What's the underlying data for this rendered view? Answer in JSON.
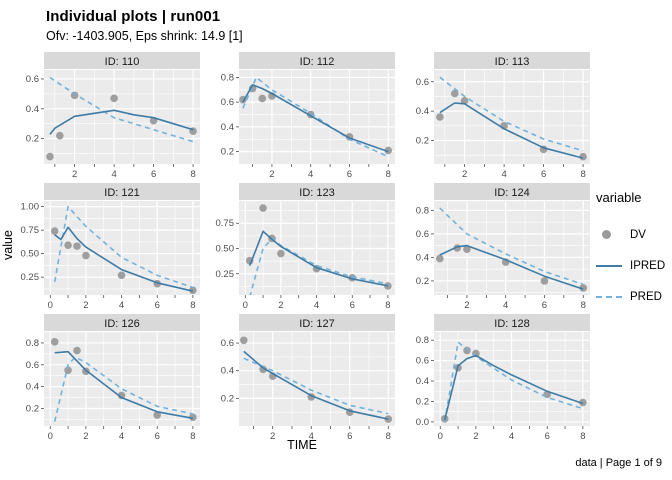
{
  "header": {
    "title": "Individual plots | run001",
    "subtitle": "Ofv: -1403.905, Eps shrink: 14.9 [1]"
  },
  "axis": {
    "x_label": "TIME",
    "y_label": "value"
  },
  "legend": {
    "title": "variable",
    "items": [
      {
        "label": "DV",
        "glyph": "point-glyph"
      },
      {
        "label": "IPRED",
        "glyph": "solid-line-glyph"
      },
      {
        "label": "PRED",
        "glyph": "dashed-line-glyph"
      }
    ]
  },
  "caption": "data | Page 1 of 9",
  "style": {
    "dv_color": "#9A9A9A",
    "ipred_color": "#3E7CA6",
    "pred_color": "#72B2DC",
    "panel_bg": "#EBEBEB",
    "strip_bg": "#D9D9D9",
    "grid_color": "#FFFFFF",
    "tick_label_color": "#4D4D4D"
  },
  "chart_data": [
    {
      "type": "line",
      "title": "ID: 110",
      "xlim": [
        0.45,
        8.35
      ],
      "ylim": [
        0.03,
        0.66
      ],
      "x_ticks": [
        2,
        4,
        6,
        8
      ],
      "y_ticks": [
        0.2,
        0.4,
        0.6
      ],
      "y_tick_labels": [
        "0.2",
        "0.4",
        "0.6"
      ],
      "series": [
        {
          "name": "DV",
          "kind": "point",
          "x": [
            0.75,
            1.25,
            2,
            4,
            6,
            8
          ],
          "y": [
            0.08,
            0.22,
            0.49,
            0.47,
            0.32,
            0.25
          ]
        },
        {
          "name": "IPRED",
          "kind": "solid",
          "x": [
            0.75,
            1,
            2,
            3,
            4,
            5,
            6,
            7,
            8
          ],
          "y": [
            0.23,
            0.27,
            0.35,
            0.37,
            0.39,
            0.36,
            0.34,
            0.3,
            0.26
          ]
        },
        {
          "name": "PRED",
          "kind": "dashed",
          "x": [
            0.75,
            2,
            4,
            6,
            8
          ],
          "y": [
            0.61,
            0.5,
            0.34,
            0.26,
            0.18
          ]
        }
      ]
    },
    {
      "type": "line",
      "title": "ID: 112",
      "xlim": [
        0.3,
        8.35
      ],
      "ylim": [
        0.1,
        0.86
      ],
      "x_ticks": [
        2,
        4,
        6,
        8
      ],
      "y_ticks": [
        0.2,
        0.4,
        0.6,
        0.8
      ],
      "y_tick_labels": [
        "0.2",
        "0.4",
        "0.6",
        "0.8"
      ],
      "series": [
        {
          "name": "DV",
          "kind": "point",
          "x": [
            0.5,
            1,
            1.5,
            2,
            4,
            6,
            8
          ],
          "y": [
            0.62,
            0.71,
            0.63,
            0.65,
            0.5,
            0.32,
            0.21
          ]
        },
        {
          "name": "IPRED",
          "kind": "solid",
          "x": [
            0.5,
            1,
            1.5,
            2,
            4,
            6,
            8
          ],
          "y": [
            0.6,
            0.74,
            0.71,
            0.67,
            0.49,
            0.31,
            0.2
          ]
        },
        {
          "name": "PRED",
          "kind": "dashed",
          "x": [
            0.5,
            1.2,
            2,
            4,
            6,
            8
          ],
          "y": [
            0.55,
            0.8,
            0.7,
            0.51,
            0.3,
            0.16
          ]
        }
      ]
    },
    {
      "type": "line",
      "title": "ID: 113",
      "xlim": [
        0.45,
        8.35
      ],
      "ylim": [
        0.04,
        0.68
      ],
      "x_ticks": [
        2,
        4,
        6,
        8
      ],
      "y_ticks": [
        0.2,
        0.4,
        0.6
      ],
      "y_tick_labels": [
        "0.2",
        "0.4",
        "0.6"
      ],
      "series": [
        {
          "name": "DV",
          "kind": "point",
          "x": [
            0.75,
            1.5,
            2,
            4,
            6,
            8
          ],
          "y": [
            0.36,
            0.52,
            0.47,
            0.3,
            0.14,
            0.09
          ]
        },
        {
          "name": "IPRED",
          "kind": "solid",
          "x": [
            0.75,
            1.5,
            2,
            4,
            6,
            8
          ],
          "y": [
            0.39,
            0.455,
            0.45,
            0.28,
            0.15,
            0.08
          ]
        },
        {
          "name": "PRED",
          "kind": "dashed",
          "x": [
            0.75,
            2,
            4,
            6,
            8
          ],
          "y": [
            0.63,
            0.5,
            0.33,
            0.21,
            0.13
          ]
        }
      ]
    },
    {
      "type": "line",
      "title": "ID: 121",
      "xlim": [
        -0.35,
        8.4
      ],
      "ylim": [
        0.06,
        1.06
      ],
      "x_ticks": [
        0,
        2,
        4,
        6,
        8
      ],
      "y_ticks": [
        0.25,
        0.5,
        0.75,
        1.0
      ],
      "y_tick_labels": [
        "0.25",
        "0.50",
        "0.75",
        "1.00"
      ],
      "series": [
        {
          "name": "DV",
          "kind": "point",
          "x": [
            0.25,
            1,
            1.5,
            2,
            4,
            6,
            8
          ],
          "y": [
            0.74,
            0.59,
            0.58,
            0.48,
            0.27,
            0.18,
            0.11
          ]
        },
        {
          "name": "IPRED",
          "kind": "solid",
          "x": [
            0.25,
            0.6,
            1,
            1.5,
            2,
            4,
            6,
            8
          ],
          "y": [
            0.7,
            0.65,
            0.78,
            0.66,
            0.57,
            0.33,
            0.19,
            0.1
          ]
        },
        {
          "name": "PRED",
          "kind": "dashed",
          "x": [
            0.25,
            1,
            2,
            4,
            6,
            8
          ],
          "y": [
            0.2,
            1.0,
            0.79,
            0.46,
            0.27,
            0.14
          ]
        }
      ]
    },
    {
      "type": "line",
      "title": "ID: 123",
      "xlim": [
        -0.35,
        8.4
      ],
      "ylim": [
        0.04,
        0.97
      ],
      "x_ticks": [
        0,
        2,
        4,
        6,
        8
      ],
      "y_ticks": [
        0.25,
        0.5,
        0.75
      ],
      "y_tick_labels": [
        "0.25",
        "0.50",
        "0.75"
      ],
      "series": [
        {
          "name": "DV",
          "kind": "point",
          "x": [
            0.25,
            1,
            1.5,
            2,
            4,
            6,
            8
          ],
          "y": [
            0.38,
            0.9,
            0.6,
            0.45,
            0.3,
            0.21,
            0.13
          ]
        },
        {
          "name": "IPRED",
          "kind": "solid",
          "x": [
            0.25,
            1,
            1.5,
            2,
            4,
            6,
            8
          ],
          "y": [
            0.33,
            0.67,
            0.59,
            0.52,
            0.31,
            0.2,
            0.13
          ]
        },
        {
          "name": "PRED",
          "kind": "dashed",
          "x": [
            0.25,
            1,
            1.5,
            2,
            4,
            6,
            8
          ],
          "y": [
            0.02,
            0.5,
            0.6,
            0.53,
            0.33,
            0.22,
            0.15
          ]
        }
      ]
    },
    {
      "type": "line",
      "title": "ID: 124",
      "xlim": [
        0.3,
        8.35
      ],
      "ylim": [
        0.08,
        0.88
      ],
      "x_ticks": [
        2,
        4,
        6,
        8
      ],
      "y_ticks": [
        0.2,
        0.4,
        0.6,
        0.8
      ],
      "y_tick_labels": [
        "0.2",
        "0.4",
        "0.6",
        "0.8"
      ],
      "series": [
        {
          "name": "DV",
          "kind": "point",
          "x": [
            0.6,
            1.5,
            2,
            4,
            6,
            8
          ],
          "y": [
            0.39,
            0.48,
            0.47,
            0.36,
            0.2,
            0.14
          ]
        },
        {
          "name": "IPRED",
          "kind": "solid",
          "x": [
            0.6,
            1.5,
            2,
            4,
            6,
            8
          ],
          "y": [
            0.42,
            0.49,
            0.5,
            0.38,
            0.24,
            0.13
          ]
        },
        {
          "name": "PRED",
          "kind": "dashed",
          "x": [
            0.6,
            2,
            4,
            6,
            8
          ],
          "y": [
            0.82,
            0.6,
            0.43,
            0.28,
            0.17
          ]
        }
      ]
    },
    {
      "type": "line",
      "title": "ID: 126",
      "xlim": [
        -0.35,
        8.4
      ],
      "ylim": [
        0.04,
        0.9
      ],
      "x_ticks": [
        0,
        2,
        4,
        6,
        8
      ],
      "y_ticks": [
        0.2,
        0.4,
        0.6,
        0.8
      ],
      "y_tick_labels": [
        "0.2",
        "0.4",
        "0.6",
        "0.8"
      ],
      "series": [
        {
          "name": "DV",
          "kind": "point",
          "x": [
            0.25,
            1,
            1.5,
            2,
            4,
            6,
            8
          ],
          "y": [
            0.81,
            0.55,
            0.73,
            0.54,
            0.32,
            0.14,
            0.12
          ]
        },
        {
          "name": "IPRED",
          "kind": "solid",
          "x": [
            0.25,
            1,
            2,
            4,
            6,
            8
          ],
          "y": [
            0.71,
            0.72,
            0.55,
            0.3,
            0.17,
            0.11
          ]
        },
        {
          "name": "PRED",
          "kind": "dashed",
          "x": [
            0.25,
            1,
            1.4,
            2,
            4,
            6,
            8
          ],
          "y": [
            0.08,
            0.6,
            0.67,
            0.62,
            0.38,
            0.22,
            0.15
          ]
        }
      ]
    },
    {
      "type": "line",
      "title": "ID: 127",
      "xlim": [
        0.25,
        8.35
      ],
      "ylim": [
        0.0,
        0.68
      ],
      "x_ticks": [
        2,
        4,
        6,
        8
      ],
      "y_ticks": [
        0.2,
        0.4,
        0.6
      ],
      "y_tick_labels": [
        "0.2",
        "0.4",
        "0.6"
      ],
      "series": [
        {
          "name": "DV",
          "kind": "point",
          "x": [
            0.5,
            1.5,
            2,
            4,
            6,
            8
          ],
          "y": [
            0.62,
            0.41,
            0.36,
            0.21,
            0.1,
            0.05
          ]
        },
        {
          "name": "IPRED",
          "kind": "solid",
          "x": [
            0.5,
            1.5,
            2,
            4,
            6,
            8
          ],
          "y": [
            0.54,
            0.42,
            0.38,
            0.22,
            0.11,
            0.05
          ]
        },
        {
          "name": "PRED",
          "kind": "dashed",
          "x": [
            0.5,
            2,
            4,
            6,
            8
          ],
          "y": [
            0.49,
            0.4,
            0.26,
            0.15,
            0.09
          ]
        }
      ]
    },
    {
      "type": "line",
      "title": "ID: 128",
      "xlim": [
        -0.35,
        8.4
      ],
      "ylim": [
        -0.04,
        0.88
      ],
      "x_ticks": [
        0,
        2,
        4,
        6,
        8
      ],
      "y_ticks": [
        0.0,
        0.2,
        0.4,
        0.6,
        0.8
      ],
      "y_tick_labels": [
        "0.0",
        "0.2",
        "0.4",
        "0.6",
        "0.8"
      ],
      "series": [
        {
          "name": "DV",
          "kind": "point",
          "x": [
            0.25,
            1,
            1.5,
            2,
            6,
            8
          ],
          "y": [
            0.03,
            0.53,
            0.7,
            0.67,
            0.27,
            0.19
          ]
        },
        {
          "name": "IPRED",
          "kind": "solid",
          "x": [
            0.25,
            1,
            1.5,
            2,
            3,
            4,
            6,
            8
          ],
          "y": [
            0.02,
            0.55,
            0.62,
            0.65,
            0.55,
            0.46,
            0.3,
            0.18
          ]
        },
        {
          "name": "PRED",
          "kind": "dashed",
          "x": [
            0.25,
            1,
            2,
            4,
            6,
            8
          ],
          "y": [
            0.0,
            0.78,
            0.64,
            0.41,
            0.24,
            0.13
          ]
        }
      ]
    }
  ]
}
